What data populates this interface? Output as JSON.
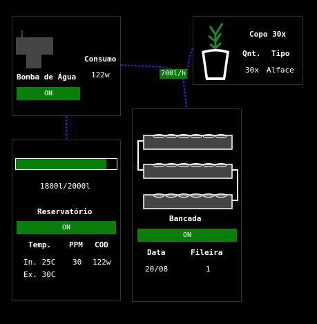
{
  "pump": {
    "title": "Bomba de Água",
    "status": "ON",
    "icon": "water-pump-icon"
  },
  "consumption": {
    "label": "Consumo",
    "value": "122w"
  },
  "flow": {
    "rate": "700l/h"
  },
  "cup": {
    "title": "Copo 30x",
    "qty_label": "Qnt.",
    "type_label": "Tipo",
    "qty": "30x",
    "type": "Alface",
    "icon": "plant-cup-icon"
  },
  "reservoir": {
    "level_text": "1800l/2000l",
    "level_fraction": 0.9,
    "title": "Reservatório",
    "status": "ON",
    "headers": [
      "Temp.",
      "PPM",
      "COD"
    ],
    "temp_in": "In. 25C",
    "temp_ex": "Ex. 30C",
    "ppm": "30",
    "cod": "122w"
  },
  "bench": {
    "title": "Bancada",
    "status": "ON",
    "date_label": "Data",
    "row_label": "Fileira",
    "date": "20/08",
    "row": "1",
    "icon": "hydroponic-bench-icon"
  },
  "colors": {
    "status_green": "#0b7d0b",
    "link_blue": "#1d2fe0",
    "panel_border": "#333333"
  }
}
